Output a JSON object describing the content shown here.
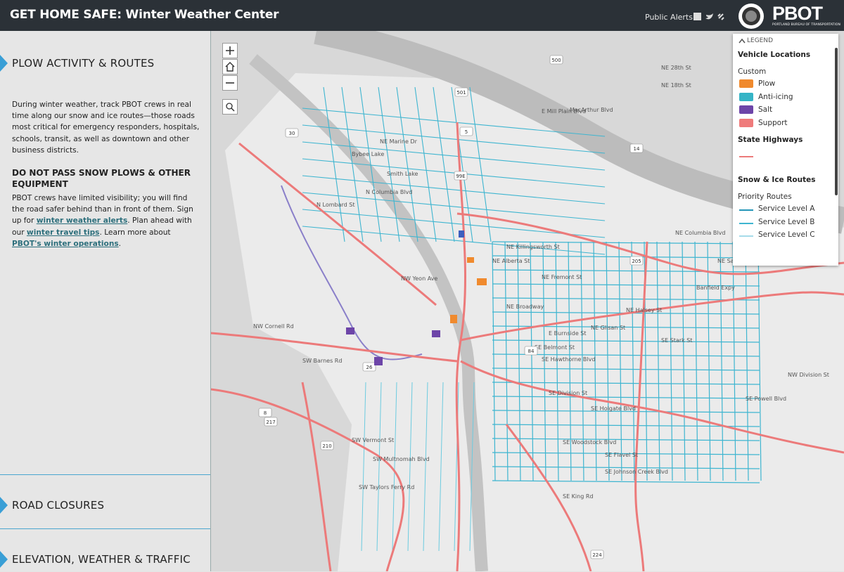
{
  "header": {
    "title": "GET HOME SAFE: Winter Weather Center",
    "public_alerts": "Public Alerts",
    "logo_text": "PBOT",
    "logo_subtitle": "PORTLAND BUREAU OF TRANSPORTATION"
  },
  "panel": {
    "sections": [
      "PLOW ACTIVITY & ROUTES",
      "ROAD CLOSURES",
      "ELEVATION, WEATHER & TRAFFIC"
    ],
    "paragraph_1": "During winter weather, track PBOT crews in real time along our snow and ice routes—those roads most critical for emergency responders, hospitals, schools, transit, as well as downtown and other business districts.",
    "subheading": "DO NOT PASS SNOW PLOWS & OTHER EQUIPMENT",
    "paragraph_2": [
      "PBOT crews have limited visibility; you will find the road safer behind than in front of them. Sign up for ",
      "winter weather alerts",
      ". Plan ahead with our ",
      "winter travel tips",
      ". Learn more about ",
      "PBOT's winter operations",
      "."
    ]
  },
  "legend": {
    "toggle": "LEGEND",
    "groups": [
      {
        "title": "Vehicle Locations",
        "subtitle": "Custom",
        "items": [
          {
            "label": "Plow",
            "color": "#f08a2e"
          },
          {
            "label": "Anti-icing",
            "color": "#35b4c6"
          },
          {
            "label": "Salt",
            "color": "#6d45a8"
          },
          {
            "label": "Support",
            "color": "#ef7b7b"
          }
        ]
      },
      {
        "title": "State Highways",
        "items": [
          {
            "color": "#ec7a7a"
          }
        ]
      },
      {
        "title": "Snow & Ice Routes",
        "subtitle": "Priority Routes",
        "items": [
          {
            "label": "Service Level A",
            "color": "#2496b8"
          },
          {
            "label": "Service Level B",
            "color": "#3eb5d0"
          },
          {
            "label": "Service Level C",
            "color": "#a6dcea"
          }
        ]
      }
    ]
  },
  "map_labels": [
    "NE Marine Dr",
    "N Columbia Blvd",
    "Smith Lake",
    "Bybee Lake",
    "NE Killingsworth St",
    "NE Alberta St",
    "NE Fremont St",
    "NE Broadway",
    "E Burnside St",
    "SE Belmont St",
    "SE Hawthorne Blvd",
    "SE Division St",
    "SE Holgate Blvd",
    "SE Woodstock Blvd",
    "SE Flavel St",
    "SE Johnson Creek Blvd",
    "NE Glisan St",
    "SE Stark St",
    "Banfield Expy",
    "NE Sandy Blvd",
    "NW Cornell Rd",
    "SW Barnes Rd",
    "SW Vermont St",
    "SW Multnomah Blvd",
    "SW Taylors Ferry Rd",
    "NW Yeon Ave",
    "NE Halsey St",
    "SE Powell Blvd",
    "NW Division St",
    "SE King Rd",
    "E Mill Plain Blvd",
    "MacArthur Blvd",
    "NE 28th St",
    "NE 18th St",
    "NE Columbia Blvd",
    "N Lombard St"
  ],
  "shields": [
    "30",
    "5",
    "84",
    "205",
    "26",
    "217",
    "210",
    "8",
    "14",
    "500",
    "501",
    "99E",
    "224"
  ]
}
